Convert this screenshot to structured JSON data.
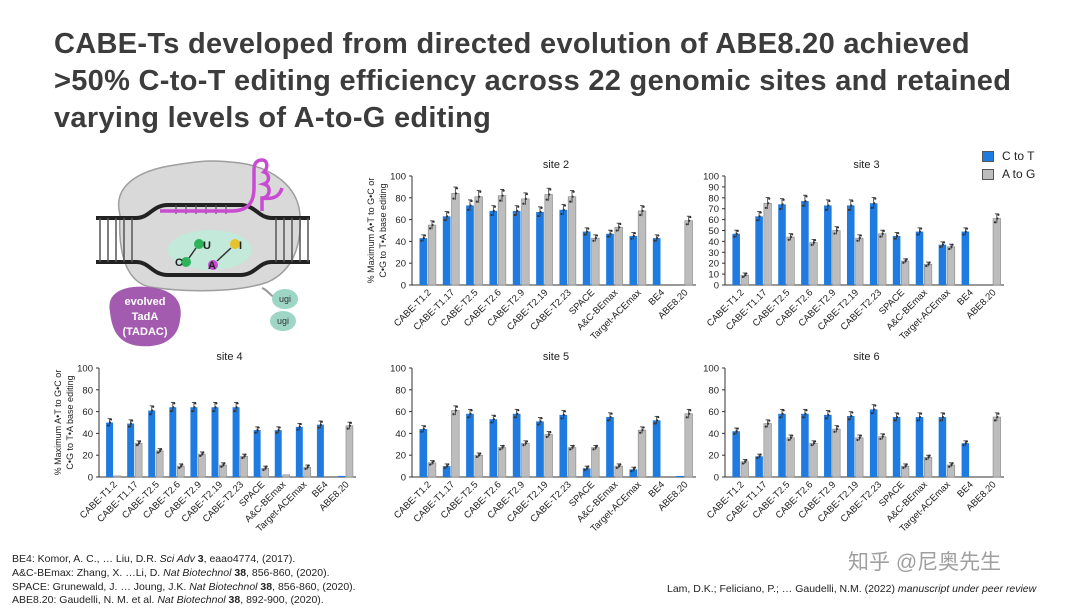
{
  "slide": {
    "title": "CABE-Ts developed from directed evolution of ABE8.20 achieved >50% C-to-T editing efficiency across 22 genomic sites and retained varying levels of A-to-G editing",
    "colors": {
      "c_to_t": "#1f7be0",
      "a_to_g": "#bdbdbd",
      "title": "#3c3c3c"
    }
  },
  "diagram": {
    "evolved_label_lines": [
      "evolved",
      "TadA",
      "(TADAC)"
    ],
    "ugi_labels": [
      "ugi",
      "ugi"
    ],
    "base_labels": [
      "C",
      "U",
      "A",
      "I"
    ]
  },
  "legend": {
    "c_to_t": "C to T",
    "a_to_g": "A to G"
  },
  "y_axis_label_lines": [
    "% Maximum A•T to G•C or",
    "C•G to T•A base editing"
  ],
  "chart_data": [
    {
      "type": "bar",
      "title": "site 2",
      "ylim": [
        0,
        100
      ],
      "yticks": [
        0,
        20,
        40,
        60,
        80,
        100
      ],
      "categories": [
        "CABE-T1.2",
        "CABE-T1.17",
        "CABE-T2.5",
        "CABE-T2.6",
        "CABE-T2.9",
        "CABE-T2.19",
        "CABE-T2.23",
        "SPACE",
        "A&C-BEmax",
        "Target-ACEmax",
        "BE4",
        "ABE8.20"
      ],
      "series": [
        {
          "name": "C to T",
          "values": [
            43,
            63,
            73,
            68,
            68,
            67,
            69,
            49,
            47,
            45,
            43,
            0
          ]
        },
        {
          "name": "A to G",
          "values": [
            55,
            84,
            81,
            82,
            79,
            83,
            81,
            43,
            53,
            68,
            0,
            59
          ]
        }
      ]
    },
    {
      "type": "bar",
      "title": "site 3",
      "ylim": [
        0,
        100
      ],
      "yticks": [
        0,
        10,
        20,
        30,
        40,
        50,
        60,
        70,
        80,
        90,
        100
      ],
      "categories": [
        "CABE-T1.2",
        "CABE-T1.17",
        "CABE-T2.5",
        "CABE-T2.6",
        "CABE-T2.9",
        "CABE-T2.19",
        "CABE-T2.23",
        "SPACE",
        "A&C-BEmax",
        "Target-ACEmax",
        "BE4",
        "ABE8.20"
      ],
      "series": [
        {
          "name": "C to T",
          "values": [
            47,
            63,
            74,
            77,
            73,
            73,
            75,
            45,
            49,
            37,
            49,
            0
          ]
        },
        {
          "name": "A to G",
          "values": [
            9,
            75,
            44,
            39,
            50,
            43,
            47,
            22,
            19,
            35,
            0,
            61
          ]
        }
      ]
    },
    {
      "type": "bar",
      "title": "site 4",
      "ylim": [
        0,
        100
      ],
      "yticks": [
        0,
        20,
        40,
        60,
        80,
        100
      ],
      "categories": [
        "CABE-T1.2",
        "CABE-T1.17",
        "CABE-T2.5",
        "CABE-T2.6",
        "CABE-T2.9",
        "CABE-T2.19",
        "CABE-T2.23",
        "SPACE",
        "A&C-BEmax",
        "Target-ACEmax",
        "BE4",
        "ABE8.20"
      ],
      "series": [
        {
          "name": "C to T",
          "values": [
            50,
            49,
            61,
            64,
            64,
            64,
            64,
            43,
            43,
            46,
            48,
            1
          ]
        },
        {
          "name": "A to G",
          "values": [
            1,
            31,
            24,
            10,
            21,
            11,
            19,
            8,
            2,
            9,
            0,
            47
          ]
        }
      ]
    },
    {
      "type": "bar",
      "title": "site 5",
      "ylim": [
        0,
        100
      ],
      "yticks": [
        0,
        20,
        40,
        60,
        80,
        100
      ],
      "categories": [
        "CABE-T1.2",
        "CABE-T1.17",
        "CABE-T2.5",
        "CABE-T2.6",
        "CABE-T2.9",
        "CABE-T2.19",
        "CABE-T2.23",
        "SPACE",
        "A&C-BEmax",
        "Target-ACEmax",
        "BE4",
        "ABE8.20"
      ],
      "series": [
        {
          "name": "C to T",
          "values": [
            44,
            10,
            58,
            53,
            58,
            51,
            57,
            8,
            55,
            7,
            52,
            1
          ]
        },
        {
          "name": "A to G",
          "values": [
            13,
            61,
            20,
            27,
            31,
            39,
            27,
            27,
            10,
            43,
            0,
            58
          ]
        }
      ]
    },
    {
      "type": "bar",
      "title": "site 6",
      "ylim": [
        0,
        100
      ],
      "yticks": [
        0,
        20,
        40,
        60,
        80,
        100
      ],
      "categories": [
        "CABE-T1.2",
        "CABE-T1.17",
        "CABE-T2.5",
        "CABE-T2.6",
        "CABE-T2.9",
        "CABE-T2.19",
        "CABE-T2.23",
        "SPACE",
        "A&C-BEmax",
        "Target-ACEmax",
        "BE4",
        "ABE8.20"
      ],
      "series": [
        {
          "name": "C to T",
          "values": [
            42,
            19,
            58,
            58,
            57,
            56,
            62,
            55,
            55,
            55,
            31,
            0
          ]
        },
        {
          "name": "A to G",
          "values": [
            14,
            49,
            36,
            31,
            44,
            36,
            37,
            10,
            18,
            11,
            0,
            55
          ]
        }
      ]
    }
  ],
  "references": [
    {
      "pre": "BE4: Komor, A. C., … Liu, D.R. ",
      "journal": "Sci Adv",
      "vol": " 3",
      "post": ", eaao4774, (2017)."
    },
    {
      "pre": "A&C-BEmax: Zhang, X. …Li, D. ",
      "journal": "Nat Biotechnol",
      "vol": " 38",
      "post": ", 856-860, (2020)."
    },
    {
      "pre": "SPACE: Grunewald, J. … Joung, J.K. ",
      "journal": "Nat Biotechnol",
      "vol": " 38",
      "post": ", 856-860, (2020)."
    },
    {
      "pre": "ABE8.20: Gaudelli, N. M. et al. ",
      "journal": "Nat Biotechnol",
      "vol": " 38",
      "post": ", 892-900, (2020)."
    }
  ],
  "citation": {
    "authors": "Lam, D.K.; Feliciano, P.; … Gaudelli, N.M. (2022) ",
    "note": "manuscript under peer review"
  },
  "watermark": "知乎 @尼奥先生"
}
